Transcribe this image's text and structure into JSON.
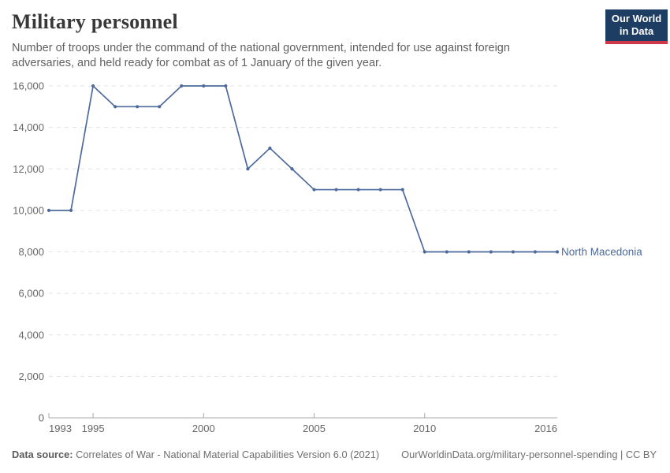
{
  "header": {
    "title": "Military personnel",
    "subtitle": "Number of troops under the command of the national government, intended for use against foreign adversaries, and held ready for combat as of 1 January of the given year."
  },
  "logo": {
    "line1": "Our World",
    "line2": "in Data",
    "bg_color": "#1d3d63",
    "accent_color": "#cf3848"
  },
  "chart_data": {
    "type": "line",
    "title": "Military personnel",
    "xlabel": "",
    "ylabel": "",
    "ylim": [
      0,
      16000
    ],
    "yticks": [
      0,
      2000,
      4000,
      6000,
      8000,
      10000,
      12000,
      14000,
      16000
    ],
    "xticks": [
      1993,
      1995,
      2000,
      2005,
      2010,
      2016
    ],
    "xtick_marks": [
      1993,
      1995,
      2000,
      2005,
      2010
    ],
    "grid": "horizontal-dashed",
    "legend_position": "end-of-line-label",
    "colors": {
      "grid": "#e3e3e3",
      "axis": "#a8a8a8",
      "tick_label": "#666666"
    },
    "series": [
      {
        "name": "North Macedonia",
        "color": "#4C6A9C",
        "x": [
          1993,
          1994,
          1995,
          1996,
          1997,
          1998,
          1999,
          2000,
          2001,
          2002,
          2003,
          2004,
          2005,
          2006,
          2007,
          2008,
          2009,
          2010,
          2011,
          2012,
          2013,
          2014,
          2015,
          2016
        ],
        "values": [
          10000,
          10000,
          16000,
          15000,
          15000,
          15000,
          16000,
          16000,
          16000,
          12000,
          13000,
          12000,
          11000,
          11000,
          11000,
          11000,
          11000,
          8000,
          8000,
          8000,
          8000,
          8000,
          8000,
          8000
        ]
      }
    ]
  },
  "footer": {
    "datasource_label": "Data source:",
    "datasource_text": " Correlates of War - National Material Capabilities Version 6.0 (2021)",
    "link_text": "OurWorldinData.org/military-personnel-spending | CC BY"
  }
}
